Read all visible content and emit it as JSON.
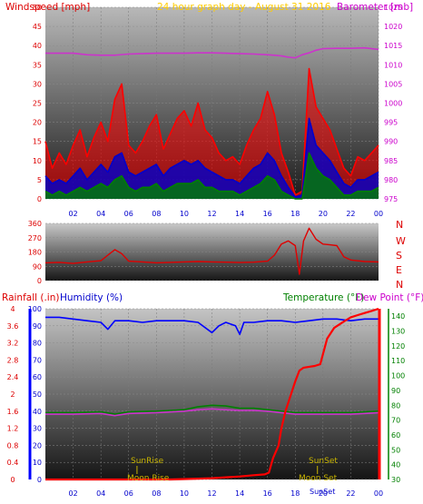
{
  "colors": {
    "wind_speed": "#ff0000",
    "wind_avg": "#0000cc",
    "wind_low": "#008000",
    "barometer": "#cc33cc",
    "title": "#ffcc00",
    "wind_dir": "#e00000",
    "humidity": "#0000ff",
    "temperature": "#008000",
    "dew_point": "#cc33cc",
    "rainfall": "#ff0000",
    "sun_moon": "#c8b400",
    "axis_label_blue": "#0000cc",
    "axis_label_red": "#dd0000",
    "axis_label_green": "#008000",
    "axis_label_magenta": "#cc00cc"
  },
  "header": {
    "left": "Windspeed [mph]",
    "center": "24 hour graph day - August 31 2016",
    "right": "Barometer [mb]"
  },
  "panel3_header": {
    "rainfall": "Rainfall (.in)",
    "humidity": "Humidity (%)",
    "temperature": "Temperature (°F)",
    "dew_point": "Dew Point (°F)"
  },
  "compass": [
    "N",
    "W",
    "S",
    "E",
    "N"
  ],
  "events": {
    "sunrise": "SunRise",
    "moonrise": "Moon Rise",
    "sunset": "SunSet",
    "moonset": "Moon Set",
    "sunset_bottom": "SunSet",
    "bottom_sun": "Sun"
  },
  "chart_data": [
    {
      "type": "line",
      "title": "24 hour graph day - August 31 2016",
      "ylabel": "Windspeed [mph]",
      "y2label": "Barometer [mb]",
      "ylim": [
        0,
        50
      ],
      "y2lim": [
        975,
        1025
      ],
      "xlim": [
        0,
        24
      ],
      "x_ticks": [
        "02",
        "04",
        "06",
        "08",
        "10",
        "12",
        "14",
        "16",
        "18",
        "20",
        "22",
        "00"
      ],
      "y_ticks": [
        "0",
        "5",
        "10",
        "15",
        "20",
        "25",
        "30",
        "35",
        "40",
        "45",
        "50"
      ],
      "y2_ticks": [
        "975",
        "980",
        "985",
        "990",
        "995",
        "1000",
        "1005",
        "1010",
        "1015",
        "1020",
        "1025"
      ],
      "series": [
        {
          "name": "",
          "kind": "barometer",
          "x": [
            0,
            1,
            2,
            3,
            4,
            5,
            6,
            7,
            8,
            9,
            10,
            11,
            12,
            13,
            14,
            15,
            16,
            16.5,
            17,
            17.5,
            18,
            18.5,
            19,
            19.5,
            20,
            21,
            22,
            23,
            24
          ],
          "values": [
            1013,
            1013,
            1013,
            1012.6,
            1012.5,
            1012.5,
            1012.8,
            1012.9,
            1013,
            1013,
            1013,
            1013.1,
            1013.1,
            1013,
            1012.9,
            1012.8,
            1012.6,
            1012.5,
            1012.3,
            1012.0,
            1011.8,
            1012.6,
            1013.1,
            1013.8,
            1014.2,
            1014.3,
            1014.3,
            1014.4,
            1014.0
          ]
        },
        {
          "name": "",
          "kind": "wind_gust",
          "x": [
            0,
            0.5,
            1,
            1.5,
            2,
            2.5,
            3,
            3.5,
            4,
            4.5,
            5,
            5.5,
            6,
            6.5,
            7,
            7.5,
            8,
            8.5,
            9,
            9.5,
            10,
            10.5,
            11,
            11.5,
            12,
            12.5,
            13,
            13.5,
            14,
            14.5,
            15,
            15.5,
            16,
            16.5,
            17,
            17.5,
            18,
            18.5,
            19,
            19.5,
            20,
            20.5,
            21,
            21.5,
            22,
            22.5,
            23,
            23.5,
            24
          ],
          "values": [
            15,
            8,
            12,
            9,
            14,
            18,
            11,
            16,
            20,
            15,
            26,
            30,
            14,
            12,
            15,
            19,
            22,
            13,
            17,
            21,
            23,
            19,
            25,
            18,
            16,
            12,
            10,
            11,
            9,
            14,
            18,
            21,
            28,
            22,
            12,
            7,
            1,
            2,
            34,
            24,
            21,
            18,
            13,
            8,
            6,
            11,
            10,
            12,
            14
          ]
        },
        {
          "name": "",
          "kind": "wind_avg",
          "x": [
            0,
            0.5,
            1,
            1.5,
            2,
            2.5,
            3,
            3.5,
            4,
            4.5,
            5,
            5.5,
            6,
            6.5,
            7,
            7.5,
            8,
            8.5,
            9,
            9.5,
            10,
            10.5,
            11,
            11.5,
            12,
            12.5,
            13,
            13.5,
            14,
            14.5,
            15,
            15.5,
            16,
            16.5,
            17,
            17.5,
            18,
            18.5,
            19,
            19.5,
            20,
            20.5,
            21,
            21.5,
            22,
            22.5,
            23,
            23.5,
            24
          ],
          "values": [
            6,
            4,
            5,
            4,
            6,
            8,
            5,
            7,
            9,
            7,
            11,
            12,
            7,
            6,
            7,
            8,
            9,
            6,
            8,
            9,
            10,
            9,
            10,
            8,
            7,
            6,
            5,
            5,
            4,
            6,
            8,
            9,
            12,
            10,
            6,
            3,
            0.5,
            1,
            21,
            14,
            12,
            10,
            7,
            4,
            3,
            5,
            5,
            6,
            7
          ]
        },
        {
          "name": "",
          "kind": "wind_low",
          "x": [
            0,
            0.5,
            1,
            1.5,
            2,
            2.5,
            3,
            3.5,
            4,
            4.5,
            5,
            5.5,
            6,
            6.5,
            7,
            7.5,
            8,
            8.5,
            9,
            9.5,
            10,
            10.5,
            11,
            11.5,
            12,
            12.5,
            13,
            13.5,
            14,
            14.5,
            15,
            15.5,
            16,
            16.5,
            17,
            17.5,
            18,
            18.5,
            19,
            19.5,
            20,
            20.5,
            21,
            21.5,
            22,
            22.5,
            23,
            23.5,
            24
          ],
          "values": [
            2,
            1,
            2,
            1,
            2,
            3,
            2,
            3,
            4,
            3,
            5,
            6,
            3,
            2,
            3,
            3,
            4,
            2,
            3,
            4,
            4,
            4,
            5,
            3,
            3,
            2,
            2,
            2,
            1,
            2,
            3,
            4,
            6,
            5,
            2,
            1,
            0,
            0,
            12,
            8,
            6,
            5,
            3,
            1,
            1,
            2,
            2,
            2,
            3
          ]
        }
      ]
    },
    {
      "type": "line",
      "ylabel": "Wind direction",
      "ylim": [
        0,
        360
      ],
      "xlim": [
        0,
        24
      ],
      "y_ticks": [
        "0",
        "90",
        "180",
        "270",
        "360"
      ],
      "series": [
        {
          "name": "",
          "kind": "wind_dir",
          "x": [
            0,
            1,
            2,
            3,
            4,
            4.5,
            5,
            5.5,
            6,
            7,
            8,
            9,
            10,
            11,
            12,
            13,
            14,
            15,
            16,
            16.5,
            17,
            17.5,
            18,
            18.3,
            18.6,
            19,
            19.5,
            20,
            20.5,
            21,
            21.5,
            22,
            23,
            24
          ],
          "values": [
            112,
            115,
            108,
            118,
            125,
            160,
            195,
            170,
            122,
            118,
            112,
            115,
            118,
            120,
            118,
            116,
            114,
            116,
            122,
            160,
            230,
            250,
            220,
            40,
            250,
            330,
            260,
            230,
            225,
            220,
            150,
            130,
            120,
            118
          ]
        }
      ]
    },
    {
      "type": "line",
      "ylabel": "Humidity (%)",
      "ylim": [
        0,
        100
      ],
      "xlim": [
        0,
        24
      ],
      "rain_ticks": [
        "0",
        "0.4",
        "0.8",
        "1.2",
        "1.6",
        "2",
        "2.4",
        "2.8",
        "3.2",
        "3.6",
        "4"
      ],
      "humidity_ticks": [
        "0",
        "10",
        "20",
        "30",
        "40",
        "50",
        "60",
        "70",
        "80",
        "90",
        "100"
      ],
      "temp_ticks": [
        "30",
        "40",
        "50",
        "60",
        "70",
        "80",
        "90",
        "100",
        "110",
        "120",
        "130",
        "140"
      ],
      "series": [
        {
          "name": "",
          "kind": "humidity",
          "x": [
            0,
            1,
            2,
            3,
            4,
            4.5,
            5,
            6,
            7,
            8,
            9,
            10,
            11,
            12,
            12.5,
            13,
            13.7,
            14,
            14.3,
            15,
            16,
            17,
            18,
            19,
            20,
            21,
            22,
            23,
            24
          ],
          "values": [
            95,
            95,
            94,
            93,
            92,
            88,
            93,
            93,
            92,
            93,
            93,
            93,
            92,
            86,
            90,
            92,
            90,
            85,
            92,
            92,
            93,
            93,
            92,
            93,
            94,
            94,
            93,
            94,
            94
          ]
        },
        {
          "name": "",
          "kind": "temperature",
          "x": [
            0,
            2,
            4,
            5,
            6,
            8,
            10,
            11,
            12,
            13,
            14,
            15,
            16,
            17,
            18,
            19,
            20,
            21,
            22,
            23,
            24
          ],
          "values": [
            75,
            75,
            75.5,
            74,
            75.5,
            76,
            77,
            79,
            80,
            79.5,
            78,
            78,
            77,
            76,
            75,
            75,
            75,
            75,
            75,
            75.5,
            76
          ]
        },
        {
          "name": "",
          "kind": "dew_point",
          "x": [
            0,
            2,
            4,
            5,
            6,
            8,
            10,
            11,
            12,
            13,
            14,
            15,
            16,
            17,
            18,
            19,
            20,
            21,
            22,
            23,
            24
          ],
          "values": [
            74,
            74,
            74.5,
            73,
            74.5,
            75,
            76,
            77,
            77.5,
            77,
            76.5,
            76.5,
            76,
            75,
            74,
            74,
            74,
            74,
            74,
            74.5,
            75
          ]
        },
        {
          "name": "",
          "kind": "rainfall",
          "x": [
            0,
            3,
            6,
            9,
            11,
            12,
            13,
            14,
            15,
            15.8,
            16.1,
            16.4,
            16.8,
            17,
            17.3,
            17.6,
            18,
            18.3,
            18.6,
            19,
            19.4,
            19.8,
            20.3,
            20.8,
            21.5,
            22,
            22.5,
            23,
            23.5,
            24
          ],
          "values": [
            0,
            0,
            0,
            0,
            0.02,
            0.03,
            0.05,
            0.07,
            0.1,
            0.12,
            0.16,
            0.5,
            0.8,
            1.2,
            1.6,
            1.9,
            2.3,
            2.55,
            2.62,
            2.64,
            2.66,
            2.7,
            3.3,
            3.55,
            3.7,
            3.8,
            3.85,
            3.9,
            3.95,
            4.0
          ]
        }
      ]
    }
  ]
}
